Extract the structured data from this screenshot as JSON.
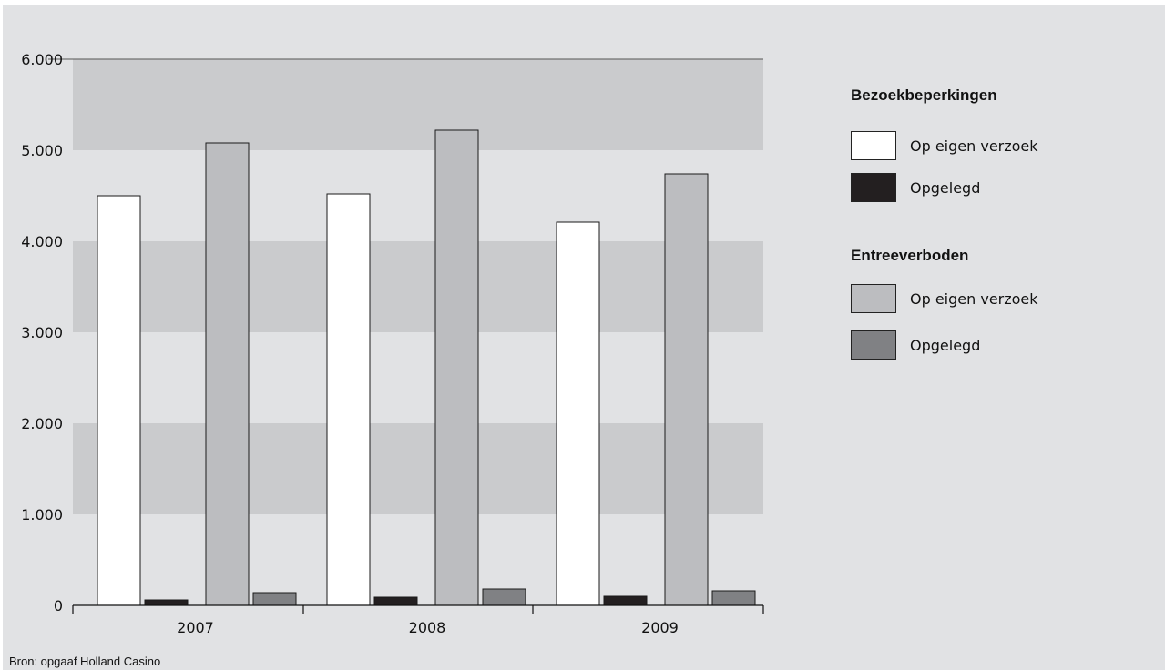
{
  "chart_data": {
    "type": "bar",
    "categories": [
      "2007",
      "2008",
      "2009"
    ],
    "series": [
      {
        "name": "Op eigen verzoek",
        "group": "Bezoekbeperkingen",
        "values": [
          4500,
          4520,
          4210
        ],
        "color": "#ffffff"
      },
      {
        "name": "Opgelegd",
        "group": "Bezoekbeperkingen",
        "values": [
          60,
          90,
          100
        ],
        "color": "#231f20"
      },
      {
        "name": "Op eigen verzoek",
        "group": "Entreeverboden",
        "values": [
          5080,
          5220,
          4740
        ],
        "color": "#bcbdc0"
      },
      {
        "name": "Opgelegd",
        "group": "Entreeverboden",
        "values": [
          140,
          180,
          160
        ],
        "color": "#808184"
      }
    ],
    "yticks": [
      0,
      1000,
      2000,
      3000,
      4000,
      5000,
      6000
    ],
    "ytick_labels": [
      "0",
      "1.000",
      "2.000",
      "3.000",
      "4.000",
      "5.000",
      "6.000"
    ],
    "ylim": [
      0,
      6000
    ],
    "grid": "alternating horizontal bands",
    "legend_placement": "right"
  },
  "legend": {
    "groups": [
      {
        "title": "Bezoekbeperkingen",
        "items": [
          {
            "label": "Op eigen verzoek",
            "color": "#ffffff"
          },
          {
            "label": "Opgelegd",
            "color": "#231f20"
          }
        ]
      },
      {
        "title": "Entreeverboden",
        "items": [
          {
            "label": "Op eigen verzoek",
            "color": "#bcbdc0"
          },
          {
            "label": "Opgelegd",
            "color": "#808184"
          }
        ]
      }
    ]
  },
  "source": "Bron: opgaaf Holland Casino",
  "colors": {
    "background": "#e1e2e4",
    "band": "#cacbcd"
  }
}
